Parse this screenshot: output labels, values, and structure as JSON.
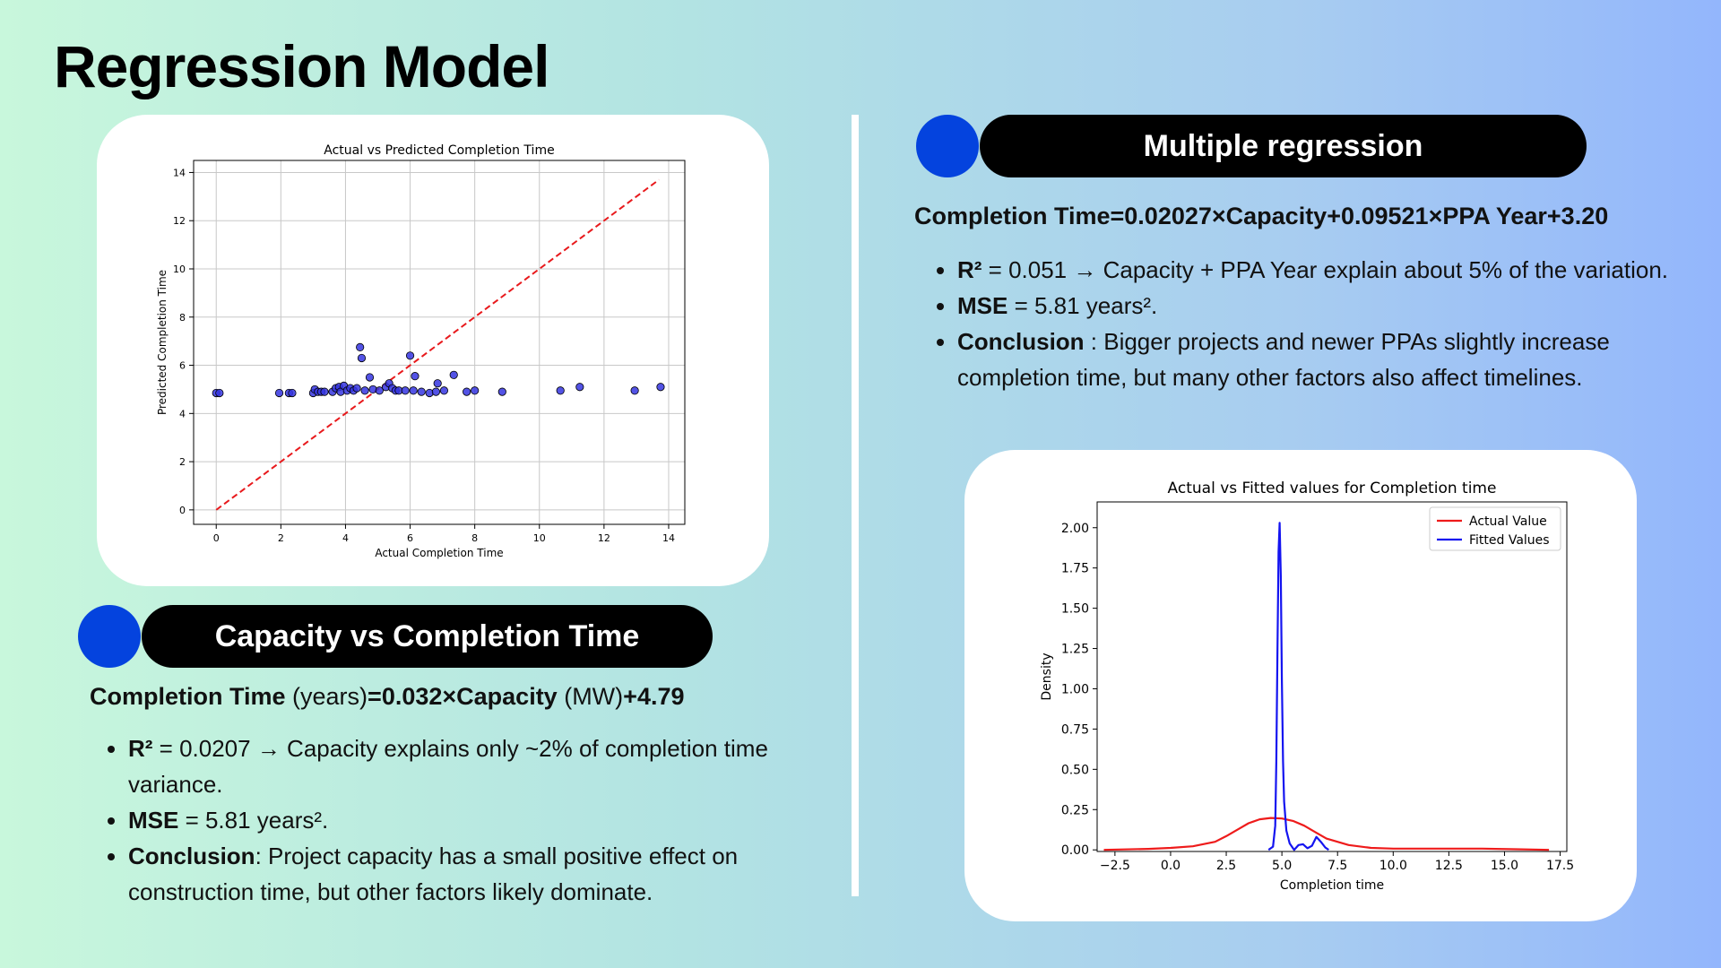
{
  "page": {
    "title": "Regression Model"
  },
  "left_section": {
    "heading": "Capacity vs Completion Time",
    "formula": {
      "part1": "Completion Time",
      "part2": " (years)",
      "part3": "=0.032×Capacity",
      "part4": " (MW)",
      "part5": "+4.79"
    },
    "bullets": [
      {
        "label": "R²",
        "text": " = 0.0207 → Capacity explains only ~2% of completion time variance."
      },
      {
        "label": "MSE",
        "text": " = 5.81 years²."
      },
      {
        "label": "Conclusion",
        "text": ": Project capacity has a small positive effect on construction time, but other factors likely dominate."
      }
    ]
  },
  "right_section": {
    "heading": "Multiple regression",
    "formula": "Completion Time=0.02027×Capacity+0.09521×PPA Year+3.20",
    "bullets": [
      {
        "label": "R²",
        "text": " = 0.051 → Capacity + PPA Year explain about 5% of the variation."
      },
      {
        "label": "MSE",
        "text": " = 5.81 years²."
      },
      {
        "label": "Conclusion",
        "text": " : Bigger projects and newer PPAs slightly increase completion time, but many other factors also affect timelines."
      }
    ]
  },
  "colors": {
    "accent_dot": "#0443de",
    "pill_bg": "#000000",
    "scatter_point": "#3535e0",
    "diag_line": "#e8191c",
    "actual_line": "#ee1b1b",
    "fitted_line": "#1414f0"
  },
  "chart_data": [
    {
      "type": "scatter",
      "title": "Actual vs Predicted Completion Time",
      "xlabel": "Actual Completion Time",
      "ylabel": "Predicted Completion Time",
      "xlim": [
        -0.7,
        14.5
      ],
      "ylim": [
        -0.6,
        14.5
      ],
      "xticks": [
        "0",
        "2",
        "4",
        "6",
        "8",
        "10",
        "12",
        "14"
      ],
      "yticks": [
        "0",
        "2",
        "4",
        "6",
        "8",
        "10",
        "12",
        "14"
      ],
      "grid": true,
      "reference_line": {
        "style": "dashed",
        "x": [
          0,
          13.7
        ],
        "y": [
          0,
          13.7
        ]
      },
      "points": [
        [
          0.0,
          4.85
        ],
        [
          0.1,
          4.85
        ],
        [
          1.95,
          4.85
        ],
        [
          2.25,
          4.85
        ],
        [
          2.35,
          4.85
        ],
        [
          3.0,
          4.85
        ],
        [
          3.05,
          5.0
        ],
        [
          3.15,
          4.9
        ],
        [
          3.25,
          4.9
        ],
        [
          3.35,
          4.9
        ],
        [
          3.6,
          4.9
        ],
        [
          3.7,
          5.05
        ],
        [
          3.8,
          5.1
        ],
        [
          3.85,
          4.9
        ],
        [
          3.95,
          5.15
        ],
        [
          4.05,
          4.95
        ],
        [
          4.15,
          5.05
        ],
        [
          4.25,
          4.95
        ],
        [
          4.35,
          5.05
        ],
        [
          4.45,
          6.75
        ],
        [
          4.5,
          6.3
        ],
        [
          4.6,
          4.95
        ],
        [
          4.75,
          5.5
        ],
        [
          4.85,
          5.0
        ],
        [
          5.05,
          4.95
        ],
        [
          5.25,
          5.1
        ],
        [
          5.35,
          5.25
        ],
        [
          5.45,
          5.05
        ],
        [
          5.55,
          4.95
        ],
        [
          5.65,
          4.95
        ],
        [
          5.85,
          4.95
        ],
        [
          6.0,
          6.4
        ],
        [
          6.1,
          4.95
        ],
        [
          6.15,
          5.55
        ],
        [
          6.35,
          4.9
        ],
        [
          6.6,
          4.85
        ],
        [
          6.8,
          4.9
        ],
        [
          6.85,
          5.25
        ],
        [
          7.05,
          4.95
        ],
        [
          7.35,
          5.6
        ],
        [
          7.75,
          4.9
        ],
        [
          8.0,
          4.95
        ],
        [
          8.85,
          4.9
        ],
        [
          10.65,
          4.95
        ],
        [
          11.25,
          5.1
        ],
        [
          12.95,
          4.95
        ],
        [
          13.75,
          5.1
        ]
      ]
    },
    {
      "type": "line",
      "title": "Actual vs Fitted values for Completion time",
      "xlabel": "Completion time",
      "ylabel": "Density",
      "xlim": [
        -3.3,
        17.8
      ],
      "ylim": [
        -0.01,
        2.16
      ],
      "xticks": [
        "−2.5",
        "0.0",
        "2.5",
        "5.0",
        "7.5",
        "10.0",
        "12.5",
        "15.0",
        "17.5"
      ],
      "yticks": [
        "0.00",
        "0.25",
        "0.50",
        "0.75",
        "1.00",
        "1.25",
        "1.50",
        "1.75",
        "2.00"
      ],
      "legend": "top-right",
      "series": [
        {
          "name": "Actual Value",
          "x": [
            -3.0,
            -1.0,
            0.0,
            1.0,
            2.0,
            2.5,
            3.0,
            3.5,
            4.0,
            4.5,
            5.0,
            5.5,
            6.0,
            6.5,
            7.0,
            8.0,
            9.0,
            10.0,
            12.0,
            14.0,
            15.5,
            17.0
          ],
          "y": [
            0.0,
            0.006,
            0.012,
            0.022,
            0.05,
            0.085,
            0.125,
            0.165,
            0.19,
            0.198,
            0.195,
            0.18,
            0.15,
            0.11,
            0.07,
            0.03,
            0.012,
            0.008,
            0.008,
            0.008,
            0.004,
            0.0
          ]
        },
        {
          "name": "Fitted Values",
          "x": [
            4.4,
            4.6,
            4.7,
            4.75,
            4.8,
            4.85,
            4.9,
            4.95,
            5.0,
            5.05,
            5.1,
            5.2,
            5.35,
            5.55,
            5.75,
            5.95,
            6.15,
            6.35,
            6.55,
            6.75,
            6.95,
            7.1
          ],
          "y": [
            0.0,
            0.02,
            0.15,
            0.55,
            1.25,
            1.85,
            2.03,
            1.7,
            1.05,
            0.55,
            0.3,
            0.12,
            0.04,
            0.0,
            0.03,
            0.035,
            0.01,
            0.025,
            0.08,
            0.05,
            0.015,
            0.0
          ]
        }
      ]
    }
  ]
}
